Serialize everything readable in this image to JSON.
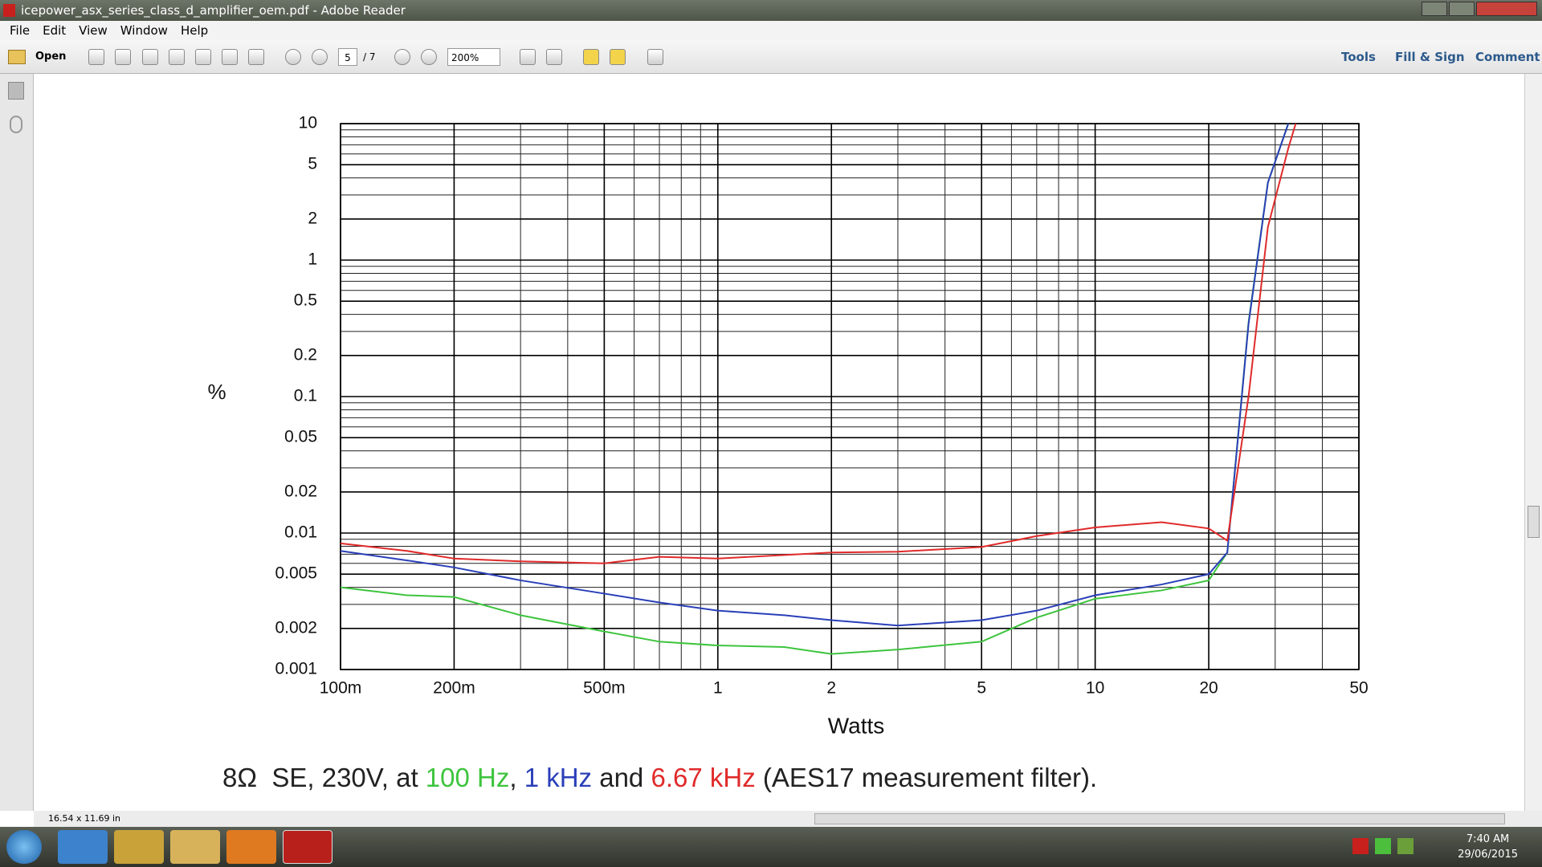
{
  "window": {
    "title": "icepower_asx_series_class_d_amplifier_oem.pdf - Adobe Reader"
  },
  "menu": [
    "File",
    "Edit",
    "View",
    "Window",
    "Help"
  ],
  "toolbar": {
    "open": "Open",
    "page": "5",
    "page_total": "/ 7",
    "zoom": "200%",
    "tools": "Tools",
    "fill_sign": "Fill & Sign",
    "comment": "Comment"
  },
  "status": {
    "page_size": "16.54 x 11.69 in"
  },
  "taskbar": {
    "time": "7:40 AM",
    "date": "29/06/2015"
  },
  "chart_data": {
    "type": "line",
    "xlabel": "Watts",
    "ylabel": "%",
    "xscale": "log",
    "yscale": "log",
    "grid": true,
    "xlim": [
      0.1,
      50
    ],
    "ylim": [
      0.001,
      10
    ],
    "xticks": [
      {
        "value": 0.1,
        "label": "100m"
      },
      {
        "value": 0.2,
        "label": "200m"
      },
      {
        "value": 0.5,
        "label": "500m"
      },
      1,
      2,
      5,
      10,
      20,
      50
    ],
    "yticks": [
      0.001,
      0.002,
      0.005,
      0.01,
      0.02,
      0.05,
      0.1,
      0.2,
      0.5,
      1,
      2,
      5,
      10
    ],
    "x": [
      0.1,
      0.15,
      0.2,
      0.3,
      0.5,
      0.7,
      1,
      1.5,
      2,
      3,
      5,
      7,
      10,
      15,
      20,
      22.4,
      25.5,
      28.7,
      32.5,
      34
    ],
    "series": [
      {
        "name": "100 Hz",
        "color": "#3ec43e",
        "values": [
          0.004,
          0.0035,
          0.0034,
          0.0025,
          0.0019,
          0.0016,
          0.0015,
          0.00146,
          0.0013,
          0.0014,
          0.0016,
          0.0024,
          0.0033,
          0.0038,
          0.0045,
          0.0072,
          0.35,
          3.7,
          10,
          null
        ]
      },
      {
        "name": "1 kHz",
        "color": "#2a3fb8",
        "values": [
          0.0074,
          0.0063,
          0.0056,
          0.0045,
          0.0036,
          0.0031,
          0.0027,
          0.0025,
          0.0023,
          0.0021,
          0.0023,
          0.0027,
          0.0035,
          0.0042,
          0.005,
          0.0072,
          0.34,
          3.7,
          10,
          null
        ]
      },
      {
        "name": "6.67 kHz",
        "color": "#e02a2a",
        "values": [
          0.0084,
          0.0074,
          0.0065,
          0.0062,
          0.006,
          0.0067,
          0.0065,
          0.0069,
          0.0072,
          0.0073,
          0.0079,
          0.0095,
          0.011,
          0.012,
          0.0108,
          0.0088,
          0.1,
          1.75,
          6.6,
          10
        ]
      }
    ]
  },
  "caption": {
    "parts": [
      "8Ω  SE, 230V, at ",
      ", ",
      " and ",
      " (AES17 measurement filter)."
    ]
  }
}
